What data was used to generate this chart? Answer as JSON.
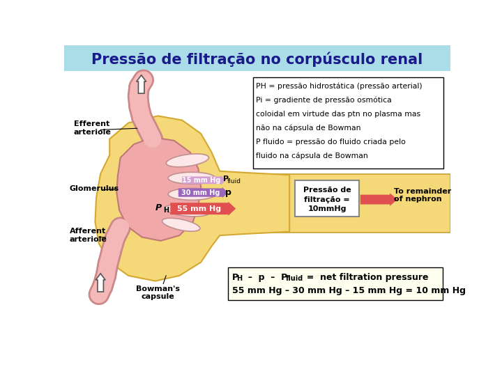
{
  "title": "Pressão de filtração no corpúsculo renal",
  "title_color": "#1a1a8c",
  "title_bg": "#aadde8",
  "bg_color": "#ffffff",
  "info_box_text_lines": [
    "PH = pressão hidrostática (pressão arterial)",
    "Pi = gradiente de pressão osmótica",
    "coloidal em virtude das ptn no plasma mas",
    "não na cápsula de Bowman",
    "P fluido = pressão do fluido criada pelo",
    "fluido na cápsula de Bowman"
  ],
  "arrow1_label": "15 mm Hg",
  "arrow1_color": "#d4a0d4",
  "arrow2_label": "30 mm Hg",
  "arrow2_color": "#9966bb",
  "arrow3_label": "55 mm Hg",
  "arrow3_color": "#e05050",
  "arrow1_symbol": "Pfluid",
  "arrow2_symbol": "p",
  "arrow3_symbol": "PH",
  "pressure_box_text": "Pressão de\nfiltração =\n10mmHg",
  "pressure_box_color": "#e05050",
  "nephron_arrow_color": "#e05050",
  "formula_bg": "#fffff0",
  "label_efferent": "Efferent\narteriole",
  "label_glomerulus": "Glomerulus",
  "label_afferent": "Afferent\narteriole",
  "label_bowman": "Bowman's\ncapsule",
  "label_nephron": "To remainder\nof nephron",
  "bowman_color": "#f5d878",
  "bowman_edge": "#d4a830",
  "glomerulus_color": "#f0a8a8",
  "glom_edge": "#c07878",
  "loop_fill": "#fce8e8",
  "loop_edge": "#c09090",
  "arteriole_color": "#f5b8b8",
  "arteriole_edge": "#cc8888",
  "duct_color": "#f5d878",
  "duct_edge": "#c8a030"
}
